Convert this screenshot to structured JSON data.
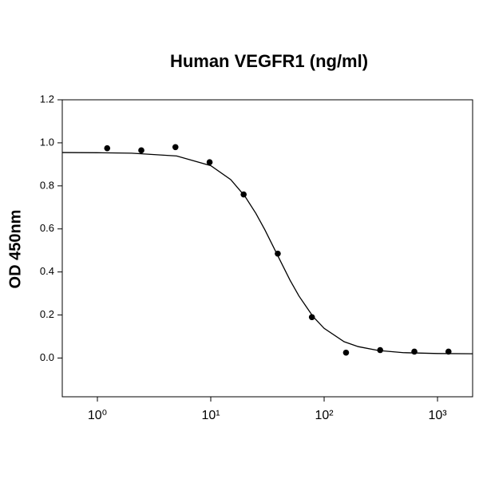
{
  "chart_data": {
    "type": "scatter",
    "title": "Human VEGFR1 (ng/ml)",
    "y_label": "OD 450nm",
    "x_scale": "log",
    "xlim": [
      0.49,
      2040
    ],
    "ylim": [
      -0.18,
      1.2
    ],
    "xticks": [
      {
        "value": 1,
        "label": "10⁰"
      },
      {
        "value": 10,
        "label": "10¹"
      },
      {
        "value": 100,
        "label": "10²"
      },
      {
        "value": 1000,
        "label": "10³"
      }
    ],
    "yticks": [
      {
        "value": 0,
        "label": "0.0"
      },
      0.2,
      0.4,
      0.6,
      0.8,
      {
        "value": 1,
        "label": "1.0"
      },
      1.2
    ],
    "color": "#000000",
    "points": {
      "x": [
        1.22,
        2.44,
        4.88,
        9.77,
        19.5,
        39,
        78,
        156,
        312,
        625,
        1250
      ],
      "values": [
        0.975,
        0.965,
        0.98,
        0.91,
        0.76,
        0.485,
        0.19,
        0.025,
        0.037,
        0.03,
        0.03
      ]
    },
    "curve": {
      "x": [
        0.49,
        1,
        2,
        5,
        10,
        15,
        20,
        25,
        30,
        40,
        50,
        60,
        80,
        100,
        150,
        200,
        300,
        500,
        1000,
        2040
      ],
      "values": [
        0.955,
        0.954,
        0.952,
        0.939,
        0.894,
        0.829,
        0.752,
        0.672,
        0.596,
        0.464,
        0.362,
        0.288,
        0.192,
        0.138,
        0.076,
        0.053,
        0.035,
        0.025,
        0.021,
        0.02
      ]
    }
  }
}
